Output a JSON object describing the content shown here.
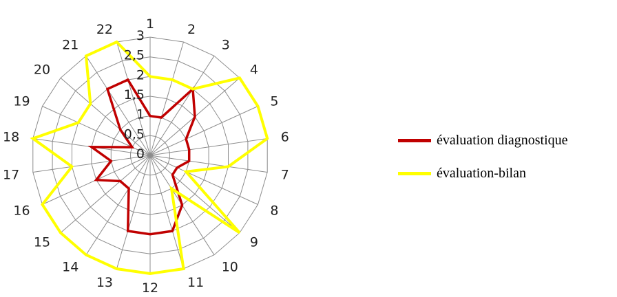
{
  "chart_data": {
    "type": "radar",
    "categories": [
      "1",
      "2",
      "3",
      "4",
      "5",
      "6",
      "7",
      "8",
      "9",
      "10",
      "11",
      "12",
      "13",
      "14",
      "15",
      "16",
      "17",
      "18",
      "19",
      "20",
      "21",
      "22"
    ],
    "ylim": [
      0,
      3
    ],
    "tick_labels": [
      "0",
      "0,5",
      "1",
      "1,5",
      "2",
      "2,5",
      "3"
    ],
    "grid": true,
    "legend_position": "right",
    "series": [
      {
        "name": "évaluation diagnostique",
        "color": "#c00000",
        "values": [
          1.0,
          1.0,
          2.0,
          1.5,
          1.0,
          1.0,
          1.0,
          0.75,
          0.75,
          1.5,
          2.0,
          2.0,
          2.0,
          1.0,
          1.0,
          1.5,
          1.0,
          1.5,
          0.5,
          1.0,
          2.0,
          2.0
        ]
      },
      {
        "name": "évaluation-bilan",
        "color": "#ffff00",
        "values": [
          2.0,
          2.0,
          2.0,
          3.0,
          3.0,
          3.0,
          2.0,
          1.0,
          3.0,
          1.0,
          3.0,
          3.0,
          3.0,
          3.0,
          3.0,
          3.0,
          2.0,
          3.0,
          2.0,
          2.0,
          3.0,
          3.0
        ]
      }
    ]
  }
}
